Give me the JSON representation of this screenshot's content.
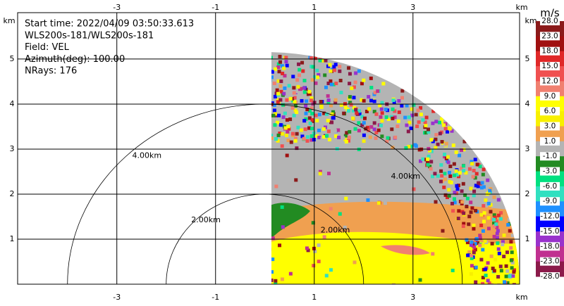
{
  "chart_data": {
    "type": "radar",
    "info_lines": [
      "Start time: 2022/04/09 03:50:33.613",
      "WLS200s-181/WLS200s-181",
      "Field: VEL",
      "Azimuth(deg): 100.00",
      "NRays: 176"
    ],
    "x_unit": "km",
    "y_unit": "km",
    "xlim": [
      -5.01,
      5.16
    ],
    "ylim": [
      0,
      6.03
    ],
    "xticks": [
      -3,
      -1,
      1,
      3
    ],
    "yticks": [
      1,
      2,
      3,
      4,
      5
    ],
    "grid": true,
    "rings": [
      {
        "value": 2,
        "label": "2.00km"
      },
      {
        "value": 4,
        "label": "4.00km"
      }
    ],
    "colorbar": {
      "title": "m/s",
      "levels": [
        {
          "value": 28,
          "label": "28.0"
        },
        {
          "value": 23,
          "label": "23.0"
        },
        {
          "value": 18,
          "label": "18.0"
        },
        {
          "value": 15,
          "label": "15.0"
        },
        {
          "value": 12,
          "label": "12.0"
        },
        {
          "value": 9,
          "label": "9.0"
        },
        {
          "value": 6,
          "label": "6.0"
        },
        {
          "value": 3,
          "label": "3.0"
        },
        {
          "value": 1,
          "label": "1.0"
        },
        {
          "value": -1,
          "label": "-1.0"
        },
        {
          "value": -3,
          "label": "-3.0"
        },
        {
          "value": -6,
          "label": "-6.0"
        },
        {
          "value": -9,
          "label": "-9.0"
        },
        {
          "value": -12,
          "label": "-12.0"
        },
        {
          "value": -15,
          "label": "-15.0"
        },
        {
          "value": -18,
          "label": "-18.0"
        },
        {
          "value": -23,
          "label": "-23.0"
        },
        {
          "value": -28,
          "label": "-28.0"
        }
      ],
      "colors": [
        "#8b1a1a",
        "#a01010",
        "#e02828",
        "#f05050",
        "#f08070",
        "#ffff00",
        "#f8f000",
        "#f0a050",
        "#b4b4b4",
        "#228b22",
        "#00e080",
        "#30e0c0",
        "#1e90ff",
        "#0000ff",
        "#9932cc",
        "#c03090",
        "#8b1a4a"
      ]
    }
  }
}
